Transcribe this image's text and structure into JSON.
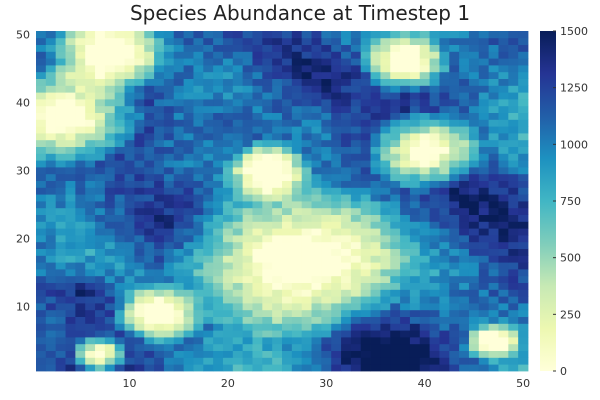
{
  "chart_data": {
    "type": "heatmap",
    "title": "Species Abundance at Timestep 1",
    "xlabel": "",
    "ylabel": "",
    "xlim": [
      0.5,
      50.5
    ],
    "ylim": [
      0.5,
      50.5
    ],
    "x_ticks": [
      10,
      20,
      30,
      40,
      50
    ],
    "y_ticks": [
      10,
      20,
      30,
      40,
      50
    ],
    "grid_size": [
      50,
      50
    ],
    "colorbar": {
      "range": [
        0,
        1500
      ],
      "ticks": [
        0,
        250,
        500,
        750,
        1000,
        1250,
        1500
      ],
      "colormap": "YlGnBu",
      "stops": [
        "#ffffd9",
        "#edf8b1",
        "#c7e9b4",
        "#7fcdbb",
        "#41b6c4",
        "#1d91c0",
        "#225ea8",
        "#253494",
        "#081d58"
      ]
    },
    "patches": {
      "low_regions": [
        {
          "x": 8,
          "y": 47,
          "r": 4
        },
        {
          "x": 38,
          "y": 46,
          "r": 3
        },
        {
          "x": 4,
          "y": 38,
          "r": 5
        },
        {
          "x": 40,
          "y": 33,
          "r": 4
        },
        {
          "x": 24,
          "y": 30,
          "r": 3
        },
        {
          "x": 26,
          "y": 17,
          "r": 8
        },
        {
          "x": 13,
          "y": 9,
          "r": 3
        },
        {
          "x": 7,
          "y": 3,
          "r": 2
        },
        {
          "x": 47,
          "y": 5,
          "r": 2
        }
      ],
      "high_regions": [
        {
          "x": 28,
          "y": 44,
          "r": 5
        },
        {
          "x": 12,
          "y": 22,
          "r": 6
        },
        {
          "x": 44,
          "y": 25,
          "r": 6
        },
        {
          "x": 22,
          "y": 36,
          "r": 5
        },
        {
          "x": 36,
          "y": 3,
          "r": 5
        },
        {
          "x": 5,
          "y": 12,
          "r": 4
        }
      ]
    }
  }
}
